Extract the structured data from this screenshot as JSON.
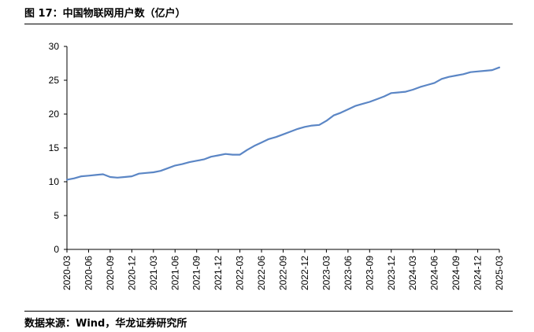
{
  "header": {
    "title": "图 17：中国物联网用户数（亿户）"
  },
  "footer": {
    "source": "数据来源：Wind，华龙证券研究所"
  },
  "chart_data": {
    "type": "line",
    "title": "图 17：中国物联网用户数（亿户）",
    "xlabel": "",
    "ylabel": "",
    "ylim": [
      0,
      30
    ],
    "yticks": [
      0,
      5,
      10,
      15,
      20,
      25,
      30
    ],
    "grid": false,
    "x_tick_labels": [
      "2020-03",
      "2020-06",
      "2020-09",
      "2020-12",
      "2021-03",
      "2021-06",
      "2021-09",
      "2021-12",
      "2022-03",
      "2022-06",
      "2022-09",
      "2022-12",
      "2023-03",
      "2023-06",
      "2023-09",
      "2023-12",
      "2024-03",
      "2024-06",
      "2024-09",
      "2024-12",
      "2025-03"
    ],
    "color": "#5b86c5",
    "series": [
      {
        "x": [
          "2020-03",
          "2020-04",
          "2020-05",
          "2020-06",
          "2020-07",
          "2020-08",
          "2020-09",
          "2020-10",
          "2020-11",
          "2020-12",
          "2021-01",
          "2021-02",
          "2021-03",
          "2021-04",
          "2021-05",
          "2021-06",
          "2021-07",
          "2021-08",
          "2021-09",
          "2021-10",
          "2021-11",
          "2021-12",
          "2022-01",
          "2022-02",
          "2022-03",
          "2022-04",
          "2022-05",
          "2022-06",
          "2022-07",
          "2022-08",
          "2022-09",
          "2022-10",
          "2022-11",
          "2022-12",
          "2023-01",
          "2023-02",
          "2023-03",
          "2023-04",
          "2023-05",
          "2023-06",
          "2023-07",
          "2023-08",
          "2023-09",
          "2023-10",
          "2023-11",
          "2023-12",
          "2024-01",
          "2024-02",
          "2024-03",
          "2024-04",
          "2024-05",
          "2024-06",
          "2024-07",
          "2024-08",
          "2024-09",
          "2024-10",
          "2024-11",
          "2024-12",
          "2025-01",
          "2025-02",
          "2025-03"
        ],
        "values": [
          10.3,
          10.5,
          10.8,
          10.9,
          11.0,
          11.1,
          10.7,
          10.6,
          10.7,
          10.8,
          11.2,
          11.3,
          11.4,
          11.6,
          12.0,
          12.4,
          12.6,
          12.9,
          13.1,
          13.3,
          13.7,
          13.9,
          14.1,
          14.0,
          14.0,
          14.7,
          15.3,
          15.8,
          16.3,
          16.6,
          17.0,
          17.4,
          17.8,
          18.1,
          18.3,
          18.4,
          19.0,
          19.8,
          20.2,
          20.7,
          21.2,
          21.5,
          21.8,
          22.2,
          22.6,
          23.1,
          23.2,
          23.3,
          23.6,
          24.0,
          24.3,
          24.6,
          25.2,
          25.5,
          25.7,
          25.9,
          26.2,
          26.3,
          26.4,
          26.5,
          26.9
        ]
      }
    ]
  }
}
